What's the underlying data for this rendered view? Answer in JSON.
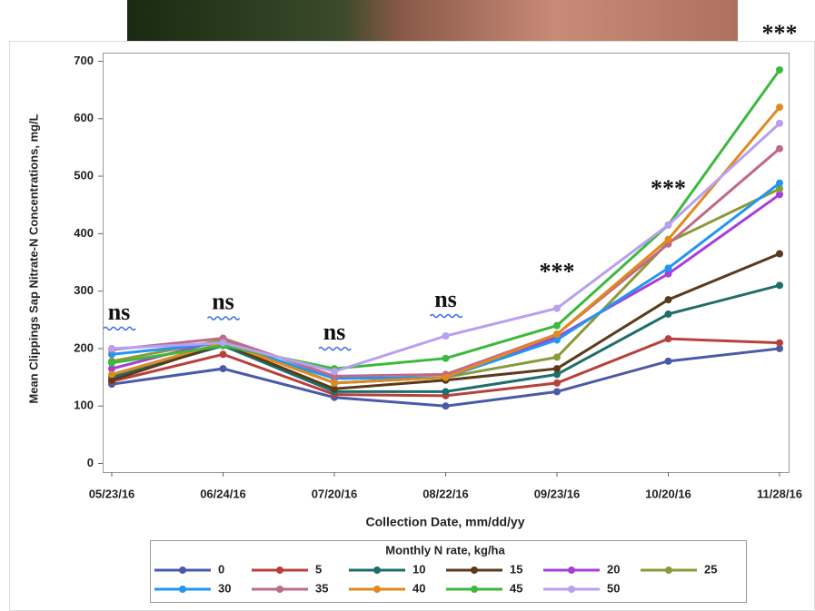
{
  "chart_data": {
    "type": "line",
    "y_label": "Mean Clippings Sap Nitrate-N Concentrations, mg/L",
    "x_label": "Collection Date, mm/dd/yy",
    "legend_title": "Monthly N rate, kg/ha",
    "categories": [
      "05/23/16",
      "06/24/16",
      "07/20/16",
      "08/22/16",
      "09/23/16",
      "10/20/16",
      "11/28/16"
    ],
    "annotations": [
      "ns",
      "ns",
      "ns",
      "ns",
      "***",
      "***",
      "***"
    ],
    "ylim": [
      -15,
      715
    ],
    "yticks": [
      0,
      100,
      200,
      300,
      400,
      500,
      600,
      700
    ],
    "series": [
      {
        "name": "0",
        "color": "#4a5aa8",
        "values": [
          138,
          165,
          115,
          100,
          125,
          178,
          200
        ]
      },
      {
        "name": "5",
        "color": "#b8403c",
        "values": [
          143,
          190,
          120,
          118,
          140,
          217,
          210
        ]
      },
      {
        "name": "10",
        "color": "#1e6e6a",
        "values": [
          150,
          205,
          125,
          125,
          155,
          260,
          310
        ]
      },
      {
        "name": "15",
        "color": "#5a3a1a",
        "values": [
          145,
          208,
          130,
          145,
          165,
          285,
          365
        ]
      },
      {
        "name": "20",
        "color": "#a63fd8",
        "values": [
          165,
          215,
          140,
          150,
          220,
          330,
          468
        ]
      },
      {
        "name": "25",
        "color": "#8a9a3a",
        "values": [
          178,
          215,
          140,
          150,
          185,
          385,
          478
        ]
      },
      {
        "name": "30",
        "color": "#2196f3",
        "values": [
          190,
          210,
          148,
          150,
          215,
          340,
          488
        ]
      },
      {
        "name": "35",
        "color": "#c06a8a",
        "values": [
          198,
          218,
          152,
          155,
          225,
          382,
          548
        ]
      },
      {
        "name": "40",
        "color": "#e08a1e",
        "values": [
          155,
          210,
          140,
          150,
          225,
          390,
          620
        ]
      },
      {
        "name": "45",
        "color": "#3cb93c",
        "values": [
          175,
          205,
          165,
          183,
          240,
          415,
          685
        ]
      },
      {
        "name": "50",
        "color": "#b8a0f0",
        "values": [
          200,
          210,
          160,
          222,
          270,
          415,
          592
        ]
      }
    ]
  }
}
